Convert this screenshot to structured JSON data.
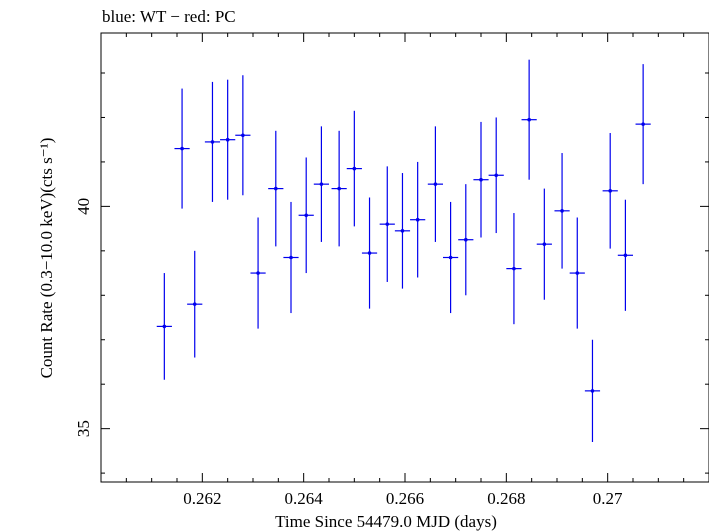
{
  "chart_data": {
    "type": "scatter",
    "title": "blue: WT − red: PC",
    "xlabel": "Time Since 54479.0 MJD (days)",
    "ylabel": "Count Rate (0.3−10.0 keV)(cts s⁻¹)",
    "xlim": [
      0.26,
      0.272
    ],
    "ylim": [
      33.8,
      43.9
    ],
    "x_ticks": [
      0.262,
      0.264,
      0.266,
      0.268,
      0.27
    ],
    "x_tick_labels": [
      "0.262",
      "0.264",
      "0.266",
      "0.268",
      "0.27"
    ],
    "y_ticks": [
      35,
      40
    ],
    "y_tick_labels": [
      "35",
      "40"
    ],
    "grid": false,
    "series": [
      {
        "color": "#0000ee",
        "x_halfwidth": 0.00015,
        "points": [
          {
            "x": 0.26125,
            "y": 37.3,
            "yerr": 1.2
          },
          {
            "x": 0.2616,
            "y": 41.3,
            "yerr": 1.35
          },
          {
            "x": 0.26185,
            "y": 37.8,
            "yerr": 1.2
          },
          {
            "x": 0.2622,
            "y": 41.45,
            "yerr": 1.35
          },
          {
            "x": 0.2625,
            "y": 41.5,
            "yerr": 1.35
          },
          {
            "x": 0.2628,
            "y": 41.6,
            "yerr": 1.35
          },
          {
            "x": 0.2631,
            "y": 38.5,
            "yerr": 1.25
          },
          {
            "x": 0.26345,
            "y": 40.4,
            "yerr": 1.3
          },
          {
            "x": 0.26375,
            "y": 38.85,
            "yerr": 1.25
          },
          {
            "x": 0.26405,
            "y": 39.8,
            "yerr": 1.3
          },
          {
            "x": 0.26435,
            "y": 40.5,
            "yerr": 1.3
          },
          {
            "x": 0.2647,
            "y": 40.4,
            "yerr": 1.3
          },
          {
            "x": 0.265,
            "y": 40.85,
            "yerr": 1.3
          },
          {
            "x": 0.2653,
            "y": 38.95,
            "yerr": 1.25
          },
          {
            "x": 0.26565,
            "y": 39.6,
            "yerr": 1.3
          },
          {
            "x": 0.26595,
            "y": 39.45,
            "yerr": 1.3
          },
          {
            "x": 0.26625,
            "y": 39.7,
            "yerr": 1.3
          },
          {
            "x": 0.2666,
            "y": 40.5,
            "yerr": 1.3
          },
          {
            "x": 0.2669,
            "y": 38.85,
            "yerr": 1.25
          },
          {
            "x": 0.2672,
            "y": 39.25,
            "yerr": 1.25
          },
          {
            "x": 0.2675,
            "y": 40.6,
            "yerr": 1.3
          },
          {
            "x": 0.2678,
            "y": 40.7,
            "yerr": 1.3
          },
          {
            "x": 0.26815,
            "y": 38.6,
            "yerr": 1.25
          },
          {
            "x": 0.26845,
            "y": 41.95,
            "yerr": 1.35
          },
          {
            "x": 0.26875,
            "y": 39.15,
            "yerr": 1.25
          },
          {
            "x": 0.2691,
            "y": 39.9,
            "yerr": 1.3
          },
          {
            "x": 0.2694,
            "y": 38.5,
            "yerr": 1.25
          },
          {
            "x": 0.2697,
            "y": 35.85,
            "yerr": 1.15
          },
          {
            "x": 0.27005,
            "y": 40.35,
            "yerr": 1.3
          },
          {
            "x": 0.27035,
            "y": 38.9,
            "yerr": 1.25
          },
          {
            "x": 0.2707,
            "y": 41.85,
            "yerr": 1.35
          }
        ]
      }
    ]
  }
}
